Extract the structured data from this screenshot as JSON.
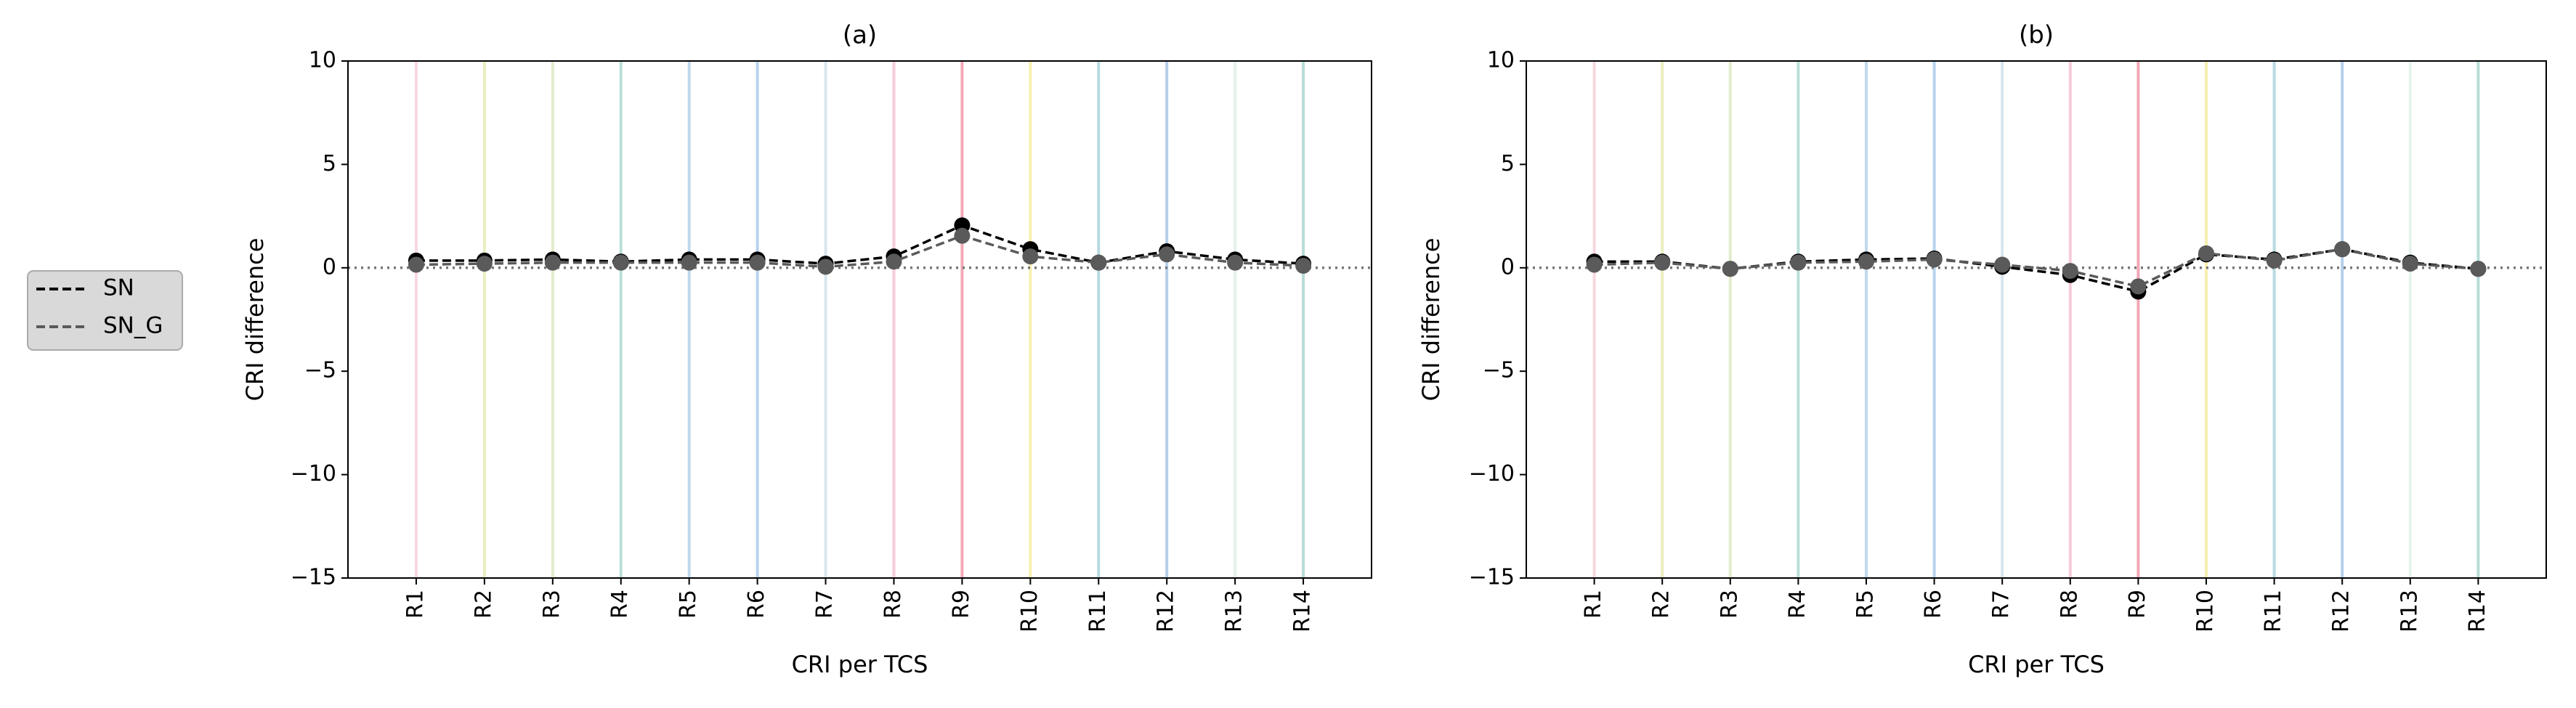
{
  "chart_data": [
    {
      "type": "line",
      "title": "(a)",
      "x_label": "CRI per TCS",
      "y_label": "CRI difference",
      "categories": [
        "R1",
        "R2",
        "R3",
        "R4",
        "R5",
        "R6",
        "R7",
        "R8",
        "R9",
        "R10",
        "R11",
        "R12",
        "R13",
        "R14"
      ],
      "category_colors": [
        "#f4b6c2",
        "#d8e08a",
        "#c9dca0",
        "#7fc4b8",
        "#8ab8de",
        "#7aaedc",
        "#b8cfe0",
        "#f0a0b8",
        "#e8607a",
        "#f0e070",
        "#7cbcc8",
        "#78a8d8",
        "#d0e8d8",
        "#7cc0b8"
      ],
      "series": [
        {
          "name": "SN",
          "color": "#000000",
          "values": [
            0.35,
            0.35,
            0.4,
            0.3,
            0.4,
            0.4,
            0.2,
            0.55,
            2.05,
            0.9,
            0.25,
            0.8,
            0.4,
            0.2
          ]
        },
        {
          "name": "SN_G",
          "color": "#5a5a5a",
          "values": [
            0.15,
            0.2,
            0.25,
            0.25,
            0.25,
            0.25,
            0.05,
            0.3,
            1.55,
            0.55,
            0.25,
            0.65,
            0.25,
            0.1
          ]
        }
      ],
      "reference_line": 0,
      "ylim": [
        -15,
        10
      ],
      "yticks": [
        {
          "value": -15,
          "label": "−15"
        },
        {
          "value": -10,
          "label": "−10"
        },
        {
          "value": -5,
          "label": "−5"
        },
        0,
        5,
        10
      ]
    },
    {
      "type": "line",
      "title": "(b)",
      "x_label": "CRI per TCS",
      "y_label": "CRI difference",
      "categories": [
        "R1",
        "R2",
        "R3",
        "R4",
        "R5",
        "R6",
        "R7",
        "R8",
        "R9",
        "R10",
        "R11",
        "R12",
        "R13",
        "R14"
      ],
      "category_colors": [
        "#f4b6c2",
        "#d8e08a",
        "#c9dca0",
        "#7fc4b8",
        "#8ab8de",
        "#7aaedc",
        "#b8cfe0",
        "#f0a0b8",
        "#e8607a",
        "#f0e070",
        "#7cbcc8",
        "#78a8d8",
        "#d0e8d8",
        "#7cc0b8"
      ],
      "series": [
        {
          "name": "SN",
          "color": "#000000",
          "values": [
            0.3,
            0.3,
            -0.05,
            0.3,
            0.4,
            0.45,
            0.05,
            -0.35,
            -1.15,
            0.65,
            0.4,
            0.9,
            0.25,
            -0.05
          ]
        },
        {
          "name": "SN_G",
          "color": "#5a5a5a",
          "values": [
            0.15,
            0.25,
            -0.05,
            0.25,
            0.3,
            0.4,
            0.15,
            -0.15,
            -0.9,
            0.7,
            0.35,
            0.9,
            0.2,
            -0.05
          ]
        }
      ],
      "reference_line": 0,
      "ylim": [
        -15,
        10
      ],
      "yticks": [
        {
          "value": -15,
          "label": "−15"
        },
        {
          "value": -10,
          "label": "−10"
        },
        {
          "value": -5,
          "label": "−5"
        },
        0,
        5,
        10
      ]
    }
  ]
}
